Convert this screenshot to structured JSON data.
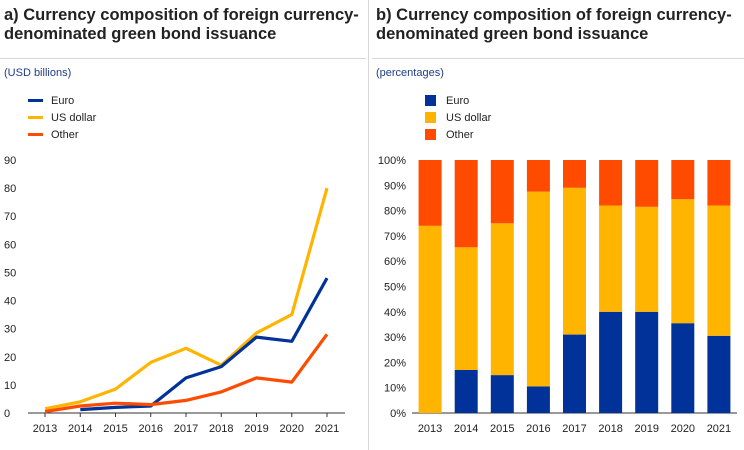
{
  "panel_a": {
    "title": "a) Currency composition of foreign currency-denominated green bond issuance",
    "units": "(USD billions)"
  },
  "panel_b": {
    "title": "b) Currency composition of foreign currency-denominated green bond issuance",
    "units": "(percentages)"
  },
  "colors": {
    "euro": "#003299",
    "us_dollar": "#ffb400",
    "other": "#ff4b00"
  },
  "chart_data": [
    {
      "type": "line",
      "x": [
        "2013",
        "2014",
        "2015",
        "2016",
        "2017",
        "2018",
        "2019",
        "2020",
        "2021"
      ],
      "ylim": [
        0,
        90
      ],
      "yticks": [
        "0",
        "10",
        "20",
        "30",
        "40",
        "50",
        "60",
        "70",
        "80",
        "90"
      ],
      "legend_position": "top-left",
      "series": [
        {
          "name": "Euro",
          "values": [
            null,
            1.2,
            2.0,
            2.5,
            12.5,
            16.5,
            27,
            25.5,
            48
          ]
        },
        {
          "name": "US dollar",
          "values": [
            1.5,
            4.0,
            8.5,
            18.0,
            23.0,
            17.0,
            28.5,
            35.0,
            80.0
          ]
        },
        {
          "name": "Other",
          "values": [
            0.5,
            2.5,
            3.5,
            3.0,
            4.5,
            7.5,
            12.5,
            11.0,
            28.0
          ]
        }
      ]
    },
    {
      "type": "bar",
      "stacked": true,
      "categories": [
        "2013",
        "2014",
        "2015",
        "2016",
        "2017",
        "2018",
        "2019",
        "2020",
        "2021"
      ],
      "ylim": [
        0,
        100
      ],
      "yticks": [
        "0%",
        "10%",
        "20%",
        "30%",
        "40%",
        "50%",
        "60%",
        "70%",
        "80%",
        "90%",
        "100%"
      ],
      "legend_position": "top-left",
      "series": [
        {
          "name": "Euro",
          "values": [
            0,
            17,
            15,
            10.5,
            31,
            40,
            40,
            35.5,
            30.5
          ]
        },
        {
          "name": "US dollar",
          "values": [
            74,
            48.5,
            60,
            77,
            58,
            42,
            41.5,
            49,
            51.5
          ]
        },
        {
          "name": "Other",
          "values": [
            26,
            34.5,
            25,
            12.5,
            11,
            18,
            18.5,
            15.5,
            18
          ]
        }
      ]
    }
  ]
}
